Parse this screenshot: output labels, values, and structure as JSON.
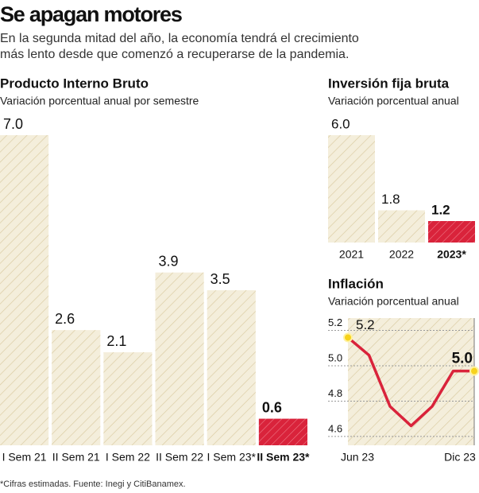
{
  "header": {
    "title": "Se apagan motores",
    "subtitle": [
      "En la segunda mitad del año, la economía tendrá el crecimiento",
      "más lento desde que comenzó a recuperarse de la pandemia."
    ]
  },
  "chart_data": [
    {
      "type": "bar",
      "title": "Producto Interno Bruto",
      "subtitle": "Variación porcentual anual por semestre",
      "categories": [
        "I Sem 21",
        "II Sem 21",
        "I Sem 22",
        "II Sem 22",
        "I Sem 23*",
        "II Sem 23*"
      ],
      "values": [
        7.0,
        2.6,
        2.1,
        3.9,
        3.5,
        0.6
      ],
      "value_labels": [
        "7.0",
        "2.6",
        "2.1",
        "3.9",
        "3.5",
        "0.6"
      ],
      "colors": [
        "#f4eedb",
        "#f4eedb",
        "#f4eedb",
        "#f4eedb",
        "#f4eedb",
        "#d9233b"
      ],
      "highlight_index": 5
    },
    {
      "type": "bar",
      "title": "Inversión fija bruta",
      "subtitle": "Variación porcentual anual",
      "categories": [
        "2021",
        "2022",
        "2023*"
      ],
      "values": [
        6.0,
        1.8,
        1.2
      ],
      "value_labels": [
        "6.0",
        "1.8",
        "1.2"
      ],
      "colors": [
        "#f4eedb",
        "#f4eedb",
        "#d9233b"
      ],
      "highlight_index": 2
    },
    {
      "type": "line",
      "title": "Inflación",
      "subtitle": "Variación porcentual anual",
      "categories": [
        "Jun 23",
        null,
        null,
        null,
        null,
        null,
        "Dic 23"
      ],
      "values": [
        5.16,
        5.06,
        4.77,
        4.66,
        4.77,
        4.97,
        4.97
      ],
      "value_labels": [
        "5.2",
        null,
        null,
        null,
        null,
        null,
        "5.0"
      ],
      "color": "#d9233b",
      "ylim": [
        4.55,
        5.27
      ],
      "yticks": [
        5.2,
        {
          "value": 5.0,
          "label": "5.0"
        },
        4.8,
        4.6
      ],
      "grid": true,
      "highlight_index": 6
    }
  ],
  "footnote": "*Cifras estimadas. Fuente: Inegi y CitiBanamex."
}
